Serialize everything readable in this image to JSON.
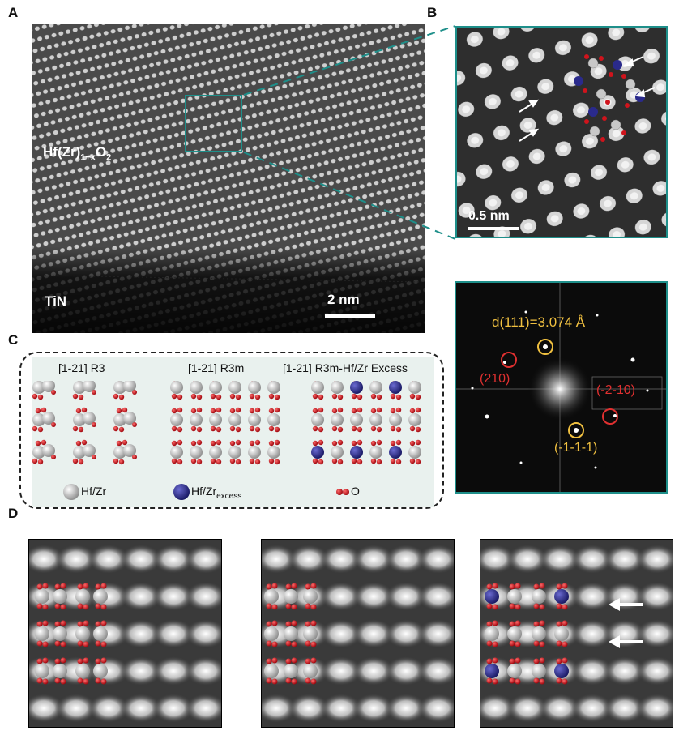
{
  "panels": {
    "a": {
      "label": "A",
      "film_label": "Hf(Zr)",
      "film_sub": "1+x",
      "film_o": "O",
      "film_o_sub": "2",
      "substrate_label": "TiN",
      "scale_bar": "2 nm"
    },
    "b": {
      "label": "B",
      "scale_bar": "0.5 nm"
    },
    "fft": {
      "d_spacing": "d(111)=3.074 Å",
      "spot_210": "(210)",
      "spot_m2m10": "(-2-10)",
      "spot_m1m1m1": "(-1-1-1)"
    },
    "c": {
      "label": "C",
      "structures": [
        {
          "title": "[1-21] R3"
        },
        {
          "title": "[1-21] R3m"
        },
        {
          "title": "[1-21] R3m-Hf/Zr Excess"
        }
      ],
      "legend": {
        "hfzr": "Hf/Zr",
        "excess_main": "Hf/Zr",
        "excess_sub": "excess",
        "oxygen": "O"
      }
    },
    "d": {
      "label": "D"
    }
  },
  "colors": {
    "teal": "#1e8f8a",
    "hf_gray": "#c8c8c8",
    "excess_blue": "#2a2a8c",
    "oxygen_red": "#d0141c",
    "fft_yellow": "#f0c040",
    "fft_red": "#e03030"
  }
}
